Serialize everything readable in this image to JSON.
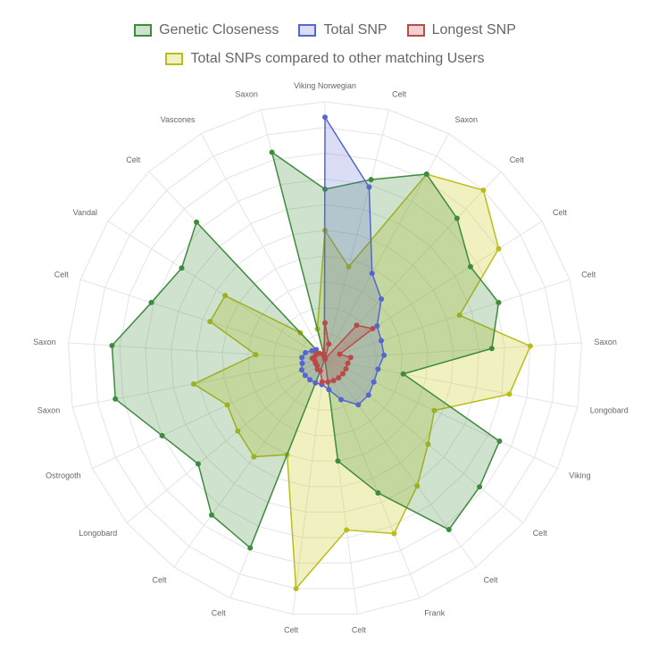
{
  "chart_data": {
    "type": "radar",
    "title": "",
    "labels": [
      "Viking Norwegian",
      "Celt",
      "Saxon",
      "Celt",
      "Celt",
      "Celt",
      "Saxon",
      "Longobard",
      "Viking",
      "Celt",
      "Celt",
      "Frank",
      "Celt",
      "Celt",
      "Celt",
      "Celt",
      "Longobard",
      "Ostrogoth",
      "Saxon",
      "Saxon",
      "Celt",
      "Vandal",
      "Celt",
      "Vascones",
      "Saxon"
    ],
    "rlim": [
      0,
      100
    ],
    "grid": true,
    "legend_position": "top",
    "series": [
      {
        "name": "Genetic Closeness",
        "color": "#3d8b3d",
        "fill": "rgba(61,139,61,0.25)",
        "values": [
          66,
          72,
          82,
          75,
          67,
          71,
          65,
          31,
          75,
          78,
          82,
          56,
          40,
          0,
          79,
          75,
          64,
          70,
          83,
          83,
          71,
          66,
          73,
          0,
          83
        ]
      },
      {
        "name": "Total SNP",
        "color": "#5566cc",
        "fill": "rgba(85,102,204,0.22)",
        "values": [
          94,
          69,
          38,
          32,
          24,
          23,
          23,
          21,
          21,
          22,
          22,
          17,
          12,
          10,
          10,
          10,
          10,
          10,
          9,
          9,
          8,
          6,
          5,
          0,
          1
        ]
      },
      {
        "name": "Longest SNP",
        "color": "#b94a48",
        "fill": "rgba(185,74,72,0.25)",
        "values": [
          14,
          6,
          0,
          18,
          22,
          6,
          10,
          9,
          9,
          9,
          9,
          9,
          9,
          9,
          5,
          5,
          4,
          4,
          4,
          5,
          4,
          4,
          3,
          0,
          2
        ]
      },
      {
        "name": "Total SNPs compared to other matching Users",
        "color": "#bcbc1c",
        "fill": "rgba(204,204,51,0.30)",
        "values": [
          50,
          37,
          82,
          90,
          80,
          55,
          80,
          73,
          47,
          52,
          61,
          73,
          67,
          90,
          40,
          47,
          44,
          42,
          52,
          27,
          47,
          46,
          14,
          0,
          12
        ]
      }
    ]
  }
}
